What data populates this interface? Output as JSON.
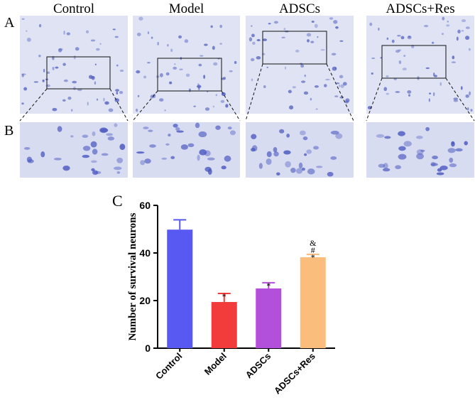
{
  "panels": {
    "a": "A",
    "b": "B",
    "c": "C"
  },
  "columns": [
    "Control",
    "Model",
    "ADSCs",
    "ADSCs+Res"
  ],
  "chart_data": {
    "type": "bar",
    "y_label": "Number of survival neurons",
    "categories": [
      "Control",
      "Model",
      "ADSCs",
      "ADSCs+Res"
    ],
    "values": [
      49.8,
      19.4,
      25.1,
      38.2
    ],
    "errors": [
      4.1,
      3.6,
      2.4,
      1.2
    ],
    "colors": [
      "#5858f2",
      "#f23c3c",
      "#b24fdb",
      "#fbbd7c"
    ],
    "significance": [
      [],
      [
        "*"
      ],
      [
        "*"
      ],
      [
        "*",
        "#",
        "&"
      ]
    ],
    "ylim": [
      0,
      60
    ],
    "yticks": [
      0,
      20,
      40,
      60
    ]
  }
}
